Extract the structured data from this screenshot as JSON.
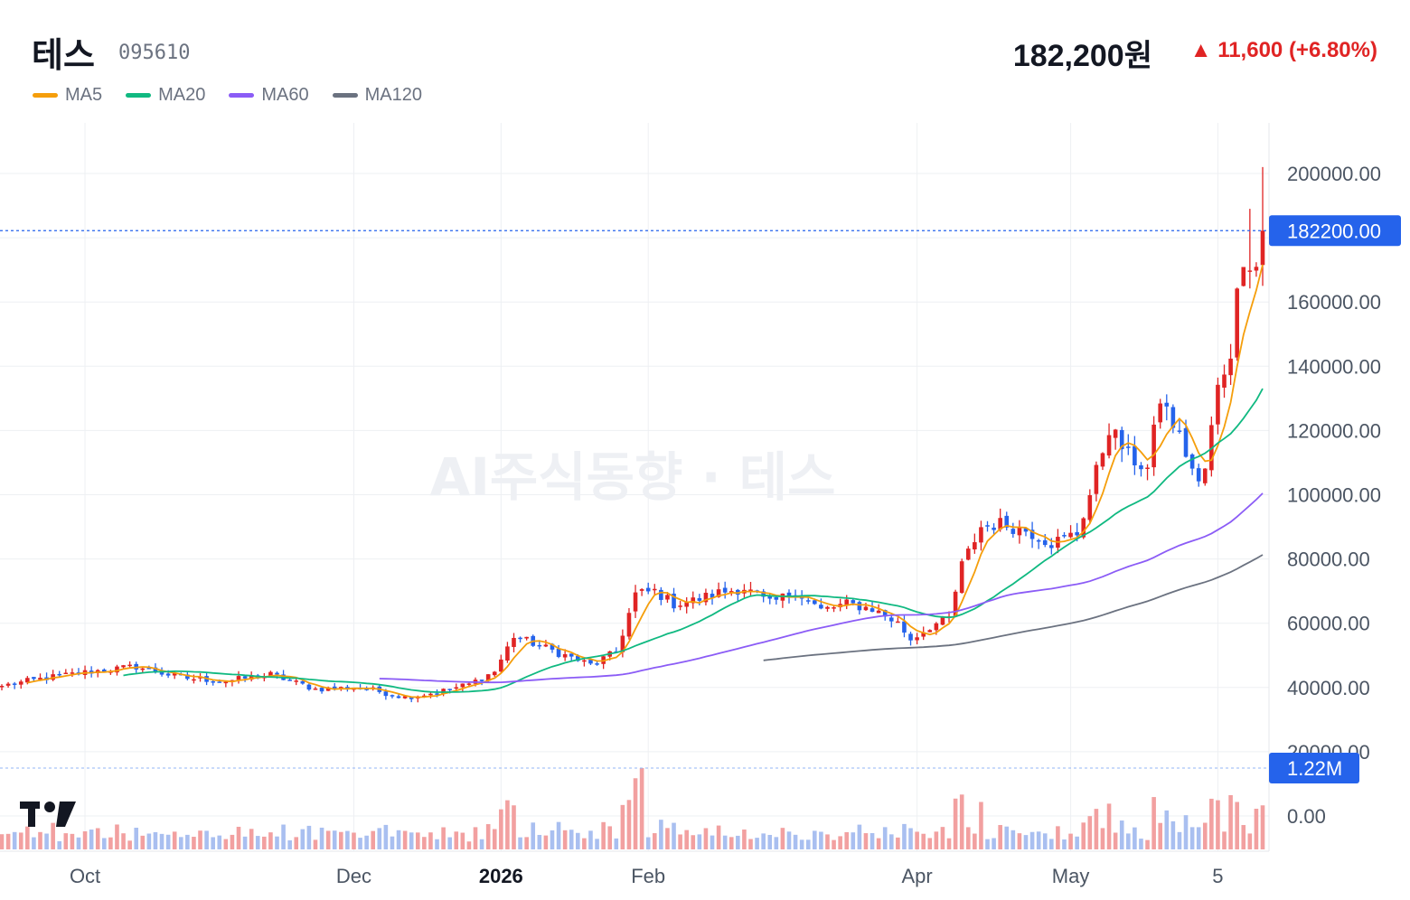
{
  "header": {
    "name": "테스",
    "code": "095610",
    "price": "182,200원",
    "change": "▲ 11,600 (+6.80%)",
    "change_color": "#e02424"
  },
  "legend": [
    {
      "name": "MA5",
      "color": "#f59e0b"
    },
    {
      "name": "MA20",
      "color": "#10b981"
    },
    {
      "name": "MA60",
      "color": "#8b5cf6"
    },
    {
      "name": "MA120",
      "color": "#6b7280"
    }
  ],
  "watermark": "AI주식동향 · 테스",
  "logo": "TV",
  "chart_data": {
    "type": "candlestick",
    "up_color": "#e02424",
    "down_color": "#2563eb",
    "y_ticks": [
      0,
      20000,
      40000,
      60000,
      80000,
      100000,
      120000,
      140000,
      160000,
      180000,
      200000
    ],
    "y_tick_labels": [
      "0.00",
      "20000.00",
      "40000.00",
      "60000.00",
      "80000.00",
      "100000.00",
      "120000.00",
      "140000.00",
      "160000.00",
      "",
      "200000.00"
    ],
    "x_labels": [
      {
        "label": "Oct",
        "at": 13,
        "bold": false
      },
      {
        "label": "Dec",
        "at": 55,
        "bold": false
      },
      {
        "label": "2026",
        "at": 78,
        "bold": true
      },
      {
        "label": "Feb",
        "at": 101,
        "bold": false
      },
      {
        "label": "Apr",
        "at": 143,
        "bold": false
      },
      {
        "label": "May",
        "at": 167,
        "bold": false
      },
      {
        "label": "5",
        "at": 190,
        "bold": false
      }
    ],
    "last_price": 182200,
    "last_price_label": "182200.00",
    "last_volume_label": "1.22M",
    "price_line_color": "#2563eb",
    "anchors": [
      [
        0,
        40500
      ],
      [
        7,
        43000
      ],
      [
        14,
        45000
      ],
      [
        21,
        46500
      ],
      [
        28,
        43000
      ],
      [
        35,
        42000
      ],
      [
        42,
        44000
      ],
      [
        49,
        39500
      ],
      [
        56,
        40000
      ],
      [
        63,
        37000
      ],
      [
        68,
        38500
      ],
      [
        73,
        41000
      ],
      [
        77,
        45000
      ],
      [
        80,
        56000
      ],
      [
        84,
        53000
      ],
      [
        88,
        50000
      ],
      [
        92,
        47000
      ],
      [
        96,
        51000
      ],
      [
        99,
        69000
      ],
      [
        102,
        70000
      ],
      [
        105,
        66000
      ],
      [
        108,
        67000
      ],
      [
        112,
        69500
      ],
      [
        116,
        71000
      ],
      [
        120,
        66000
      ],
      [
        124,
        70000
      ],
      [
        128,
        64000
      ],
      [
        132,
        66000
      ],
      [
        136,
        64500
      ],
      [
        140,
        60000
      ],
      [
        142,
        55000
      ],
      [
        145,
        59000
      ],
      [
        148,
        61500
      ],
      [
        150,
        78000
      ],
      [
        153,
        90000
      ],
      [
        156,
        91000
      ],
      [
        160,
        89000
      ],
      [
        164,
        85000
      ],
      [
        168,
        88000
      ],
      [
        170,
        100000
      ],
      [
        173,
        121000
      ],
      [
        176,
        112000
      ],
      [
        179,
        108000
      ],
      [
        181,
        130000
      ],
      [
        184,
        118000
      ],
      [
        187,
        103000
      ],
      [
        188,
        108000
      ],
      [
        190,
        133000
      ],
      [
        192,
        145000
      ],
      [
        193,
        162000
      ],
      [
        194,
        175000
      ],
      [
        196,
        171000
      ],
      [
        197,
        182200
      ]
    ],
    "volume_range": [
      0,
      4000000
    ]
  }
}
